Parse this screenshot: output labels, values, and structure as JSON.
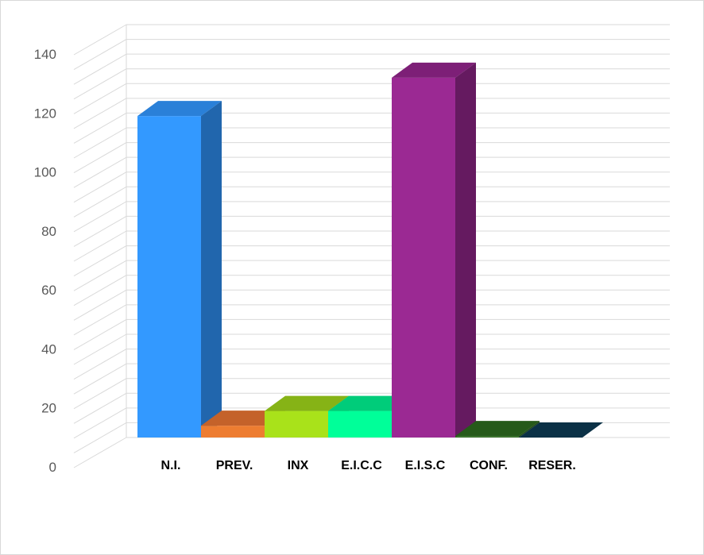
{
  "chart_data": {
    "type": "bar",
    "style": "3d-column",
    "categories": [
      "N.I.",
      "PREV.",
      "INX",
      "E.I.C.C",
      "E.I.S.C",
      "CONF.",
      "RESER."
    ],
    "values": [
      109,
      4,
      9,
      9,
      122,
      0.5,
      0
    ],
    "colors": [
      "#3399ff",
      "#ed7d31",
      "#a9e21a",
      "#00ff99",
      "#9b2993",
      "#2e6b1f",
      "#0e3a52"
    ],
    "side_colors": [
      "#2166ad",
      "#b85a1e",
      "#7aa80f",
      "#00bf70",
      "#651a60",
      "#1f4a14",
      "#092836"
    ],
    "top_colors": [
      "#2a80d8",
      "#c4622a",
      "#86b316",
      "#00cc7a",
      "#7d1f77",
      "#265a1a",
      "#0b3146"
    ],
    "title": "",
    "xlabel": "",
    "ylabel": "",
    "ylim": [
      0,
      140
    ],
    "yticks": [
      0,
      20,
      40,
      60,
      80,
      100,
      120,
      140
    ],
    "grid": true,
    "legend": "none"
  }
}
